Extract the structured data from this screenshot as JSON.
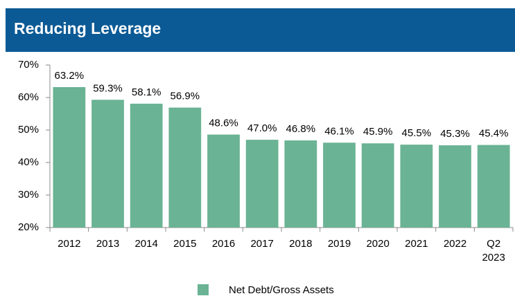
{
  "chart_data": {
    "type": "bar",
    "title": "Reducing Leverage",
    "categories": [
      "2012",
      "2013",
      "2014",
      "2015",
      "2016",
      "2017",
      "2018",
      "2019",
      "2020",
      "2021",
      "2022",
      "Q2 2023"
    ],
    "series": [
      {
        "name": "Net Debt/Gross Assets",
        "color": "#6ab394",
        "values": [
          63.2,
          59.3,
          58.1,
          56.9,
          48.6,
          47.0,
          46.8,
          46.1,
          45.9,
          45.5,
          45.3,
          45.4
        ],
        "value_labels": [
          "63.2%",
          "59.3%",
          "58.1%",
          "56.9%",
          "48.6%",
          "47.0%",
          "46.8%",
          "46.1%",
          "45.9%",
          "45.5%",
          "45.3%",
          "45.4%"
        ]
      }
    ],
    "ylim": [
      20,
      70
    ],
    "yticks": [
      {
        "value": 20,
        "label": "20%"
      },
      {
        "value": 30,
        "label": "30%"
      },
      {
        "value": 40,
        "label": "40%"
      },
      {
        "value": 50,
        "label": "50%"
      },
      {
        "value": 60,
        "label": "60%"
      },
      {
        "value": 70,
        "label": "70%"
      }
    ],
    "grid": false,
    "legend": "bottom"
  }
}
